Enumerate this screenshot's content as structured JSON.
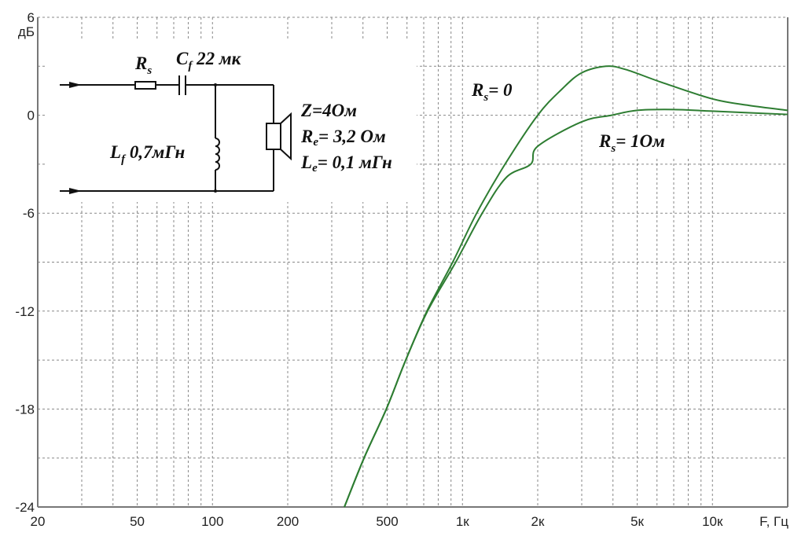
{
  "chart_data": {
    "type": "line",
    "xscale": "log",
    "xlim": [
      20,
      20000
    ],
    "ylim": [
      -24,
      6
    ],
    "grid": true,
    "y_unit_label": "дБ",
    "xlabel": "F, Гц",
    "x_ticks": [
      {
        "value": 20,
        "label": "20"
      },
      {
        "value": 50,
        "label": "50"
      },
      {
        "value": 100,
        "label": "100"
      },
      {
        "value": 200,
        "label": "200"
      },
      {
        "value": 500,
        "label": "500"
      },
      {
        "value": 1000,
        "label": "1к"
      },
      {
        "value": 2000,
        "label": "2к"
      },
      {
        "value": 5000,
        "label": "5к"
      },
      {
        "value": 10000,
        "label": "10к"
      }
    ],
    "y_ticks": [
      {
        "value": 6,
        "label": "6"
      },
      {
        "value": 0,
        "label": "0"
      },
      {
        "value": -6,
        "label": "-6"
      },
      {
        "value": -12,
        "label": "-12"
      },
      {
        "value": -18,
        "label": "-18"
      },
      {
        "value": -24,
        "label": "-24"
      }
    ],
    "line_color": "#2e7d32",
    "series": [
      {
        "name": "Rs=0",
        "label_main": "R",
        "label_sub": "s",
        "label_rest": "= 0",
        "points": [
          [
            337,
            -24
          ],
          [
            404,
            -21
          ],
          [
            496,
            -18
          ],
          [
            593,
            -15
          ],
          [
            721,
            -12
          ],
          [
            914,
            -9
          ],
          [
            1140,
            -6
          ],
          [
            1480,
            -3
          ],
          [
            2000,
            0
          ],
          [
            2500,
            1.6
          ],
          [
            3000,
            2.6
          ],
          [
            3750,
            3.0
          ],
          [
            4500,
            2.8
          ],
          [
            6300,
            2.0
          ],
          [
            10000,
            1.0
          ],
          [
            14000,
            0.6
          ],
          [
            20000,
            0.3
          ]
        ]
      },
      {
        "name": "Rs=1Ом",
        "label_main": "R",
        "label_sub": "s",
        "label_rest": "= 1Ом",
        "points": [
          [
            337,
            -24
          ],
          [
            404,
            -21
          ],
          [
            496,
            -18
          ],
          [
            593,
            -15
          ],
          [
            725,
            -12
          ],
          [
            940,
            -9
          ],
          [
            1200,
            -6
          ],
          [
            1500,
            -3.8
          ],
          [
            1875,
            -3
          ],
          [
            2000,
            -1.9
          ],
          [
            3000,
            -0.4
          ],
          [
            3950,
            0
          ],
          [
            5000,
            0.3
          ],
          [
            7000,
            0.35
          ],
          [
            10000,
            0.25
          ],
          [
            20000,
            0.05
          ]
        ]
      }
    ]
  },
  "circuit": {
    "rs_main": "R",
    "rs_sub": "s",
    "cf_main": "C",
    "cf_sub": "f",
    "cf_value": " 22 мк",
    "lf_main": "L",
    "lf_sub": "f",
    "lf_value": " 0,7мГн",
    "z_text": "Z=4Ом",
    "re_main": "R",
    "re_sub": "e",
    "re_value": "= 3,2 Ом",
    "le_main": "L",
    "le_sub": "e",
    "le_value": "= 0,1 мГн"
  }
}
